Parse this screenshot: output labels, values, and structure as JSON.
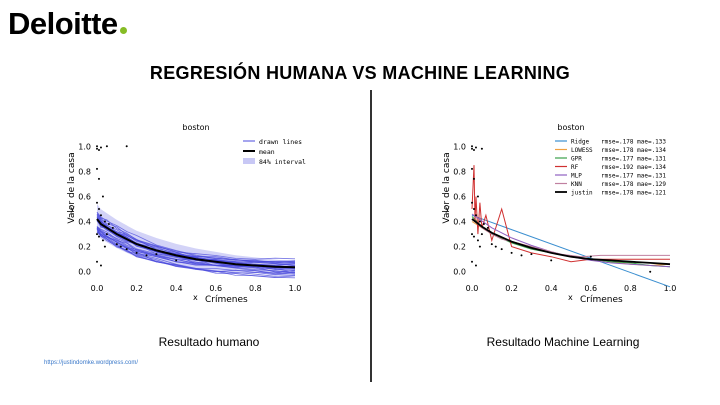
{
  "brand": {
    "name": "Deloitte",
    "accent": "#86bc25"
  },
  "slide_title": "REGRESIÓN HUMANA VS MACHINE LEARNING",
  "captions": {
    "left": "Resultado humano",
    "right": "Resultado Machine Learning"
  },
  "source_link": "https://justindomke.wordpress.com/",
  "chart_data": [
    {
      "type": "line",
      "title": "boston",
      "xlabel": "Crímenes",
      "ylabel": "Valor de la casa",
      "xaxis_letter": "x",
      "yaxis_letter": "y",
      "xlim": [
        0.0,
        1.0
      ],
      "ylim": [
        -0.05,
        1.05
      ],
      "xticks": [
        "0.0",
        "0.2",
        "0.4",
        "0.6",
        "0.8",
        "1.0"
      ],
      "yticks": [
        "0.0",
        "0.2",
        "0.4",
        "0.6",
        "0.8",
        "1.0"
      ],
      "legend": [
        "drawn lines",
        "mean",
        "84% interval"
      ],
      "colors": {
        "lines": "#4b4bdc",
        "mean": "#000000",
        "interval": "#c8c8f5"
      },
      "mean": {
        "x": [
          0.0,
          0.02,
          0.05,
          0.1,
          0.15,
          0.2,
          0.3,
          0.4,
          0.5,
          0.6,
          0.7,
          0.8,
          0.9,
          1.0
        ],
        "y": [
          0.42,
          0.38,
          0.35,
          0.3,
          0.26,
          0.22,
          0.17,
          0.13,
          0.1,
          0.08,
          0.06,
          0.05,
          0.04,
          0.035
        ]
      },
      "points": {
        "x": [
          0.0,
          0.0,
          0.01,
          0.02,
          0.0,
          0.01,
          0.03,
          0.0,
          0.01,
          0.02,
          0.04,
          0.06,
          0.08,
          0.0,
          0.01,
          0.03,
          0.05,
          0.1,
          0.12,
          0.15,
          0.2,
          0.25,
          0.3,
          0.4,
          0.05,
          0.0,
          0.02,
          0.04,
          0.15
        ],
        "y": [
          1.0,
          0.98,
          0.97,
          0.99,
          0.82,
          0.74,
          0.6,
          0.55,
          0.5,
          0.45,
          0.4,
          0.38,
          0.35,
          0.3,
          0.28,
          0.25,
          0.3,
          0.22,
          0.2,
          0.18,
          0.15,
          0.13,
          0.14,
          0.09,
          1.0,
          0.08,
          0.05,
          0.2,
          1.0
        ]
      }
    },
    {
      "type": "line",
      "title": "boston",
      "xlabel": "Crímenes",
      "ylabel": "Valor de la casa",
      "xaxis_letter": "x",
      "yaxis_letter": "y",
      "xlim": [
        0.0,
        1.0
      ],
      "ylim": [
        -0.05,
        1.05
      ],
      "xticks": [
        "0.0",
        "0.2",
        "0.4",
        "0.6",
        "0.8",
        "1.0"
      ],
      "yticks": [
        "0.0",
        "0.2",
        "0.4",
        "0.6",
        "0.8",
        "1.0"
      ],
      "series": [
        {
          "name": "Ridge",
          "metric": "rmse=.178 mae=.133",
          "color": "#3b8fd0",
          "x": [
            0.0,
            1.0
          ],
          "y": [
            0.45,
            -0.12
          ]
        },
        {
          "name": "LOWESS",
          "metric": "rmse=.178 mae=.134",
          "color": "#f0a040",
          "x": [
            0.0,
            0.05,
            0.1,
            0.2,
            0.3,
            0.4,
            0.5,
            0.6,
            0.7,
            0.8,
            0.9,
            1.0
          ],
          "y": [
            0.4,
            0.35,
            0.3,
            0.24,
            0.2,
            0.15,
            0.12,
            0.1,
            0.08,
            0.06,
            0.05,
            0.06
          ]
        },
        {
          "name": "GPR",
          "metric": "rmse=.177 mae=.131",
          "color": "#3aa04a",
          "x": [
            0.0,
            0.05,
            0.1,
            0.2,
            0.3,
            0.4,
            0.5,
            0.6,
            0.7,
            0.8,
            0.9,
            1.0
          ],
          "y": [
            0.44,
            0.36,
            0.3,
            0.23,
            0.18,
            0.15,
            0.12,
            0.1,
            0.08,
            0.07,
            0.05,
            0.04
          ]
        },
        {
          "name": "RF",
          "metric": "rmse=.192 mae=.134",
          "color": "#d03030",
          "x": [
            0.0,
            0.01,
            0.015,
            0.02,
            0.03,
            0.04,
            0.05,
            0.07,
            0.1,
            0.15,
            0.2,
            0.3,
            0.4,
            0.5,
            0.6,
            1.0
          ],
          "y": [
            0.5,
            0.85,
            0.4,
            0.6,
            0.3,
            0.55,
            0.35,
            0.45,
            0.25,
            0.5,
            0.2,
            0.15,
            0.12,
            0.08,
            0.1,
            0.1
          ]
        },
        {
          "name": "MLP",
          "metric": "rmse=.177 mae=.131",
          "color": "#9060c0",
          "x": [
            0.0,
            0.1,
            0.2,
            0.3,
            0.4,
            0.5,
            0.6,
            0.7,
            0.8,
            0.9,
            1.0
          ],
          "y": [
            0.46,
            0.35,
            0.27,
            0.21,
            0.16,
            0.12,
            0.09,
            0.07,
            0.06,
            0.05,
            0.04
          ]
        },
        {
          "name": "KNN",
          "metric": "rmse=.178 mae=.129",
          "color": "#c080a0",
          "x": [
            0.0,
            0.05,
            0.1,
            0.15,
            0.25,
            0.35,
            0.45,
            0.55,
            0.65,
            0.8,
            1.0
          ],
          "y": [
            0.42,
            0.35,
            0.3,
            0.26,
            0.22,
            0.18,
            0.14,
            0.12,
            0.13,
            0.13,
            0.13
          ]
        },
        {
          "name": "justin",
          "metric": "rmse=.178 mae=.121",
          "color": "#000000",
          "x": [
            0.0,
            0.05,
            0.1,
            0.2,
            0.3,
            0.4,
            0.5,
            0.6,
            0.7,
            0.8,
            0.9,
            1.0
          ],
          "y": [
            0.42,
            0.36,
            0.31,
            0.24,
            0.19,
            0.15,
            0.12,
            0.1,
            0.09,
            0.08,
            0.07,
            0.06
          ]
        }
      ],
      "points": {
        "x": [
          0.0,
          0.0,
          0.01,
          0.02,
          0.0,
          0.01,
          0.03,
          0.0,
          0.01,
          0.02,
          0.04,
          0.06,
          0.08,
          0.0,
          0.01,
          0.03,
          0.05,
          0.1,
          0.12,
          0.15,
          0.2,
          0.25,
          0.3,
          0.4,
          0.05,
          0.0,
          0.02,
          0.04,
          0.6,
          0.9
        ],
        "y": [
          1.0,
          0.98,
          0.97,
          0.99,
          0.82,
          0.74,
          0.6,
          0.55,
          0.5,
          0.45,
          0.4,
          0.38,
          0.35,
          0.3,
          0.28,
          0.25,
          0.3,
          0.22,
          0.2,
          0.18,
          0.15,
          0.13,
          0.14,
          0.09,
          0.98,
          0.08,
          0.05,
          0.2,
          0.12,
          0.0
        ]
      }
    }
  ]
}
